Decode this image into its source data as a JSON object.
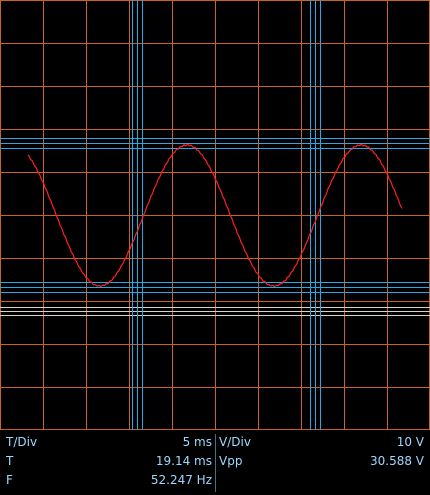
{
  "scope": {
    "grid_color": "#c8642a",
    "trace_color": "#ff2020",
    "cursor_color": "#27a9e8",
    "ref_line_color": "#d9d2c3",
    "background": "#000000",
    "divisions_x": 10,
    "divisions_y": 10
  },
  "readout": {
    "tdiv_label": "T/Div",
    "tdiv_value": "5 ms",
    "vdiv_label": "V/Div",
    "vdiv_value": "10 V",
    "t_label": "T",
    "t_value": "19.14 ms",
    "vpp_label": "Vpp",
    "vpp_value": "30.588 V",
    "f_label": "F",
    "f_value": "52.247 Hz"
  }
}
